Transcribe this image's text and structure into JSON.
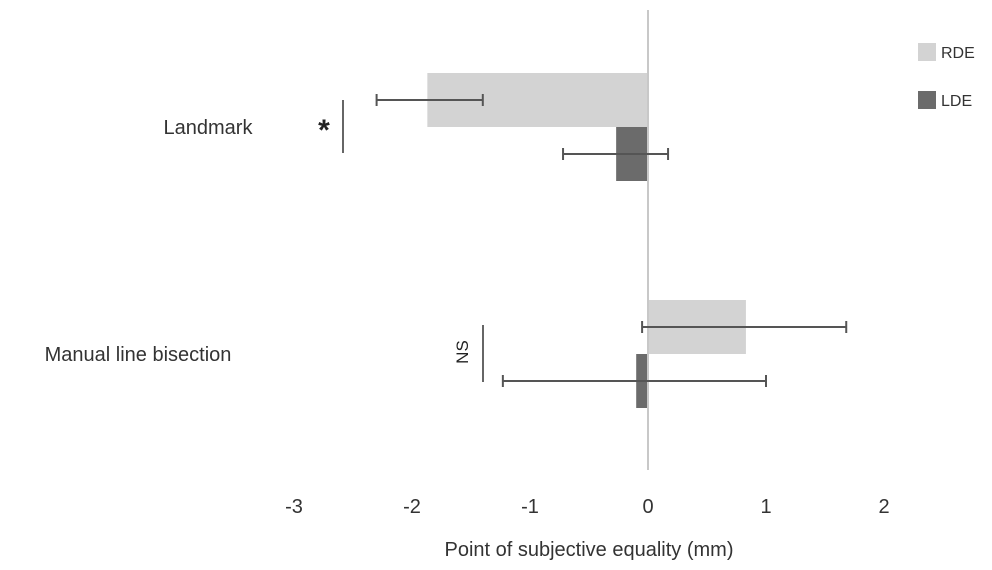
{
  "chart_data": {
    "type": "bar",
    "orientation": "horizontal",
    "categories": [
      "Landmark",
      "Manual line bisection"
    ],
    "series": [
      {
        "name": "RDE",
        "color": "#d3d3d3",
        "values": [
          -1.87,
          0.83
        ],
        "error_low": [
          -2.3,
          -0.05
        ],
        "error_high": [
          -1.4,
          1.68
        ]
      },
      {
        "name": "LDE",
        "color": "#6b6b6b",
        "values": [
          -0.27,
          -0.1
        ],
        "error_low": [
          -0.72,
          -1.23
        ],
        "error_high": [
          0.17,
          1.0
        ]
      }
    ],
    "xlabel": "Point of subjective equality (mm)",
    "ylabel": "",
    "xlim": [
      -3,
      2
    ],
    "xticks": [
      "-3",
      "-2",
      "-1",
      "0",
      "1",
      "2"
    ],
    "grid": false,
    "legend_position": "top-right",
    "significance": [
      "*",
      "NS"
    ]
  }
}
